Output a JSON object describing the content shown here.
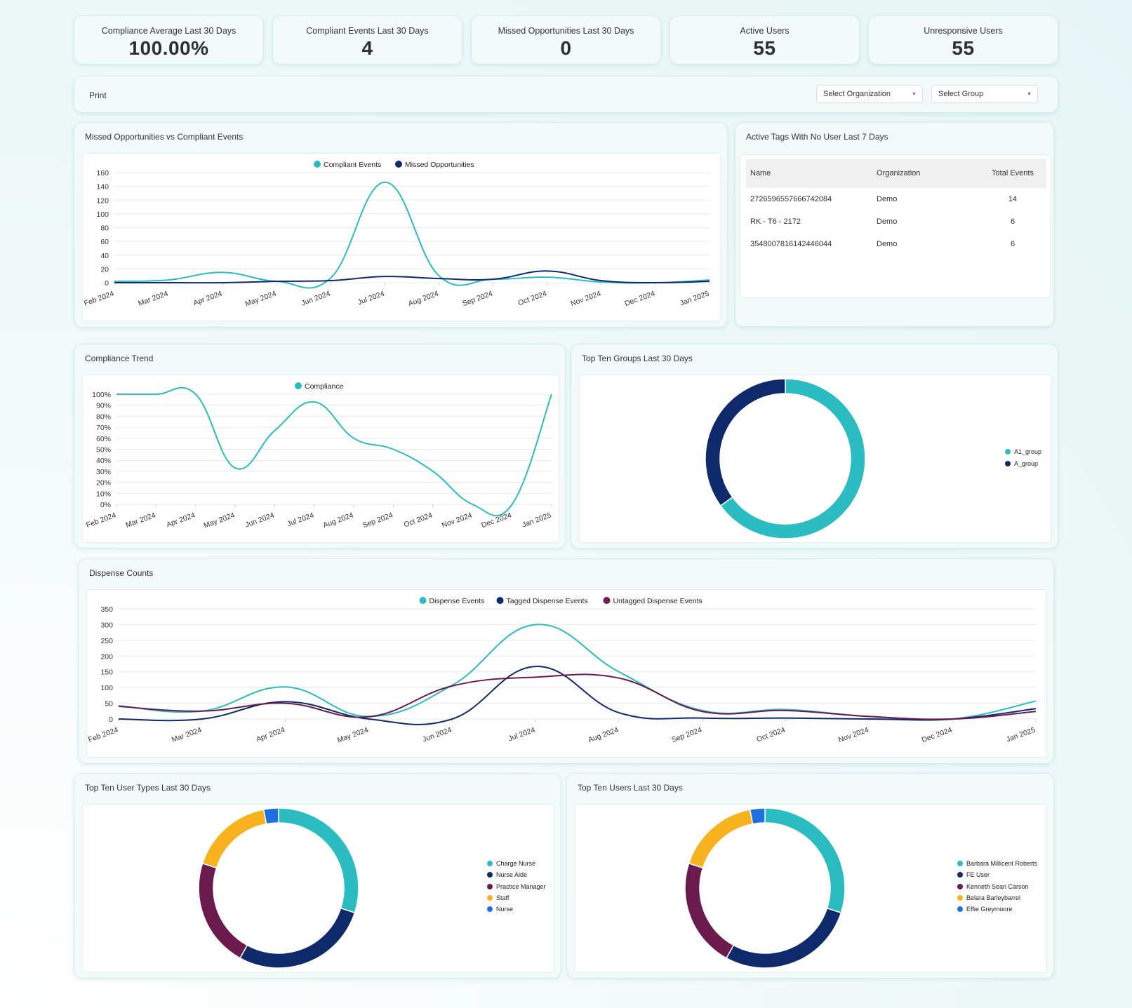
{
  "kpis": [
    {
      "label": "Compliance Average Last 30 Days",
      "value": "100.00%"
    },
    {
      "label": "Compliant Events Last 30 Days",
      "value": "4"
    },
    {
      "label": "Missed Opportunities Last 30 Days",
      "value": "0"
    },
    {
      "label": "Active Users",
      "value": "55"
    },
    {
      "label": "Unresponsive Users",
      "value": "55"
    }
  ],
  "toolbar": {
    "print_label": "Print",
    "org_select": "Select Organization",
    "group_select": "Select Group"
  },
  "panels": {
    "missed_vs_compliant": "Missed Opportunities vs Compliant Events",
    "active_tags": "Active Tags With No User Last 7 Days",
    "compliance_trend": "Compliance Trend",
    "top_groups": "Top Ten Groups Last 30 Days",
    "dispense_counts": "Dispense Counts",
    "top_user_types": "Top Ten User Types Last 30 Days",
    "top_users": "Top Ten Users Last 30 Days"
  },
  "tags_table": {
    "headers": [
      "Name",
      "Organization",
      "Total Events"
    ],
    "rows": [
      [
        "2726596557666742084",
        "Demo",
        "14"
      ],
      [
        "RK - T6 - 2172",
        "Demo",
        "6"
      ],
      [
        "3548007816142446044",
        "Demo",
        "6"
      ]
    ]
  },
  "colors": {
    "teal": "#2bbcc2",
    "navy": "#0e2a6b",
    "plum": "#6b1a4e",
    "amber": "#f8b21d",
    "blue": "#1e6fe0",
    "grid": "#e8e8e8"
  },
  "chart_data": [
    {
      "id": "missed_vs_compliant",
      "type": "line",
      "x": [
        "Feb 2024",
        "Mar 2024",
        "Apr 2024",
        "May 2024",
        "Jun 2024",
        "Jul 2024",
        "Aug 2024",
        "Sep 2024",
        "Oct 2024",
        "Nov 2024",
        "Dec 2024",
        "Jan 2025"
      ],
      "series": [
        {
          "name": "Compliant Events",
          "color": "#2bbcc2",
          "values": [
            2,
            4,
            15,
            2,
            7,
            146,
            10,
            5,
            8,
            1,
            0,
            4
          ]
        },
        {
          "name": "Missed Opportunities",
          "color": "#0e2a6b",
          "values": [
            0,
            0,
            0,
            2,
            3,
            9,
            6,
            5,
            17,
            3,
            0,
            2
          ]
        }
      ],
      "ylim": [
        0,
        160
      ],
      "yticks": [
        "0",
        "20",
        "40",
        "60",
        "80",
        "100",
        "120",
        "140",
        "160"
      ],
      "legend": "top"
    },
    {
      "id": "compliance_trend",
      "type": "line",
      "x": [
        "Feb 2024",
        "Mar 2024",
        "Apr 2024",
        "May 2024",
        "Jun 2024",
        "Jul 2024",
        "Aug 2024",
        "Sep 2024",
        "Oct 2024",
        "Nov 2024",
        "Dec 2024",
        "Jan 2025"
      ],
      "series": [
        {
          "name": "Compliance",
          "color": "#2bbcc2",
          "values": [
            100,
            100,
            100,
            33,
            67,
            93,
            60,
            50,
            30,
            0,
            0,
            100
          ]
        }
      ],
      "ylim": [
        0,
        100
      ],
      "yticks": [
        "0%",
        "10%",
        "20%",
        "30%",
        "40%",
        "50%",
        "60%",
        "70%",
        "80%",
        "90%",
        "100%"
      ],
      "legend": "top"
    },
    {
      "id": "top_groups",
      "type": "pie",
      "labels": [
        "A1_group",
        "A_group"
      ],
      "values": [
        65,
        35
      ],
      "colors": [
        "#2bbcc2",
        "#0e2a6b"
      ],
      "legend": "right"
    },
    {
      "id": "dispense_counts",
      "type": "line",
      "x": [
        "Feb 2024",
        "Mar 2024",
        "Apr 2024",
        "May 2024",
        "Jun 2024",
        "Jul 2024",
        "Aug 2024",
        "Sep 2024",
        "Oct 2024",
        "Nov 2024",
        "Dec 2024",
        "Jan 2025"
      ],
      "series": [
        {
          "name": "Dispense Events",
          "color": "#2bbcc2",
          "values": [
            42,
            25,
            102,
            8,
            107,
            300,
            150,
            27,
            30,
            8,
            0,
            57
          ]
        },
        {
          "name": "Tagged Dispense Events",
          "color": "#0e2a6b",
          "values": [
            0,
            0,
            55,
            0,
            0,
            167,
            20,
            3,
            3,
            0,
            0,
            33
          ]
        },
        {
          "name": "Untagged Dispense Events",
          "color": "#6b1a4e",
          "values": [
            40,
            25,
            50,
            7,
            105,
            133,
            130,
            24,
            27,
            8,
            0,
            24
          ]
        }
      ],
      "ylim": [
        0,
        350
      ],
      "yticks": [
        "0",
        "50",
        "100",
        "150",
        "200",
        "250",
        "300",
        "350"
      ],
      "legend": "top"
    },
    {
      "id": "top_user_types",
      "type": "pie",
      "labels": [
        "Charge Nurse",
        "Nurse Aide",
        "Practice Manager",
        "Staff",
        "Nurse"
      ],
      "values": [
        30,
        28,
        22,
        17,
        3
      ],
      "colors": [
        "#2bbcc2",
        "#0e2a6b",
        "#6b1a4e",
        "#f8b21d",
        "#1e6fe0"
      ],
      "legend": "right"
    },
    {
      "id": "top_users",
      "type": "pie",
      "labels": [
        "Barbara Millicent Roberts",
        "FE User",
        "Kenneth Sean Carson",
        "Belara Barleybarrel",
        "Effie Greymoore"
      ],
      "values": [
        30,
        28,
        22,
        17,
        3
      ],
      "colors": [
        "#2bbcc2",
        "#0e2a6b",
        "#6b1a4e",
        "#f8b21d",
        "#1e6fe0"
      ],
      "legend": "right"
    }
  ]
}
